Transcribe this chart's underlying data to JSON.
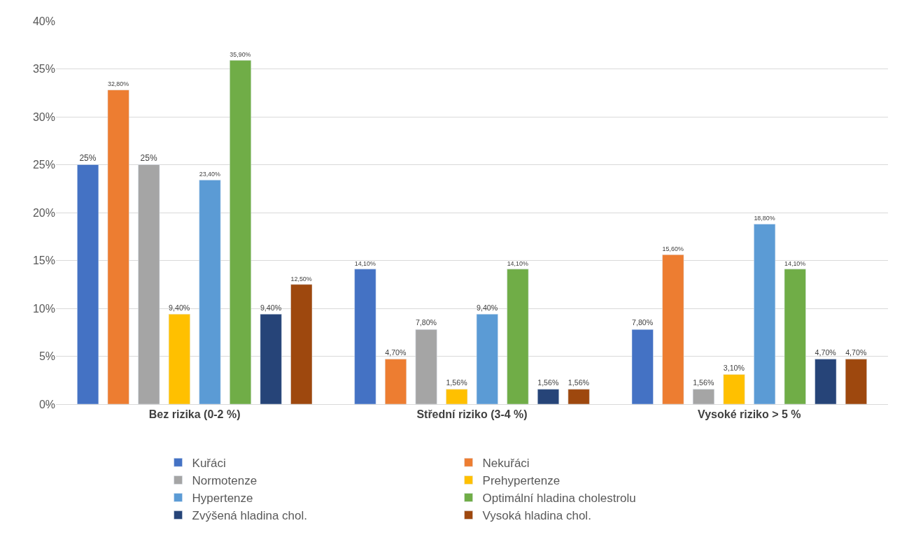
{
  "chart_data": {
    "type": "bar",
    "categories": [
      "Bez rizika (0-2 %)",
      "Střední riziko (3-4 %)",
      "Vysoké riziko > 5 %"
    ],
    "series": [
      {
        "name": "Kuřáci",
        "color": "#4472c4",
        "values": [
          25,
          14.1,
          7.8
        ],
        "value_labels": [
          "25%",
          "14,10%",
          "7,80%"
        ]
      },
      {
        "name": "Nekuřáci",
        "color": "#ed7d31",
        "values": [
          32.8,
          4.7,
          15.6
        ],
        "value_labels": [
          "32,80%",
          "4,70%",
          "15,60%"
        ]
      },
      {
        "name": "Normotenze",
        "color": "#a5a5a5",
        "values": [
          25,
          7.8,
          1.56
        ],
        "value_labels": [
          "25%",
          "7,80%",
          "1,56%"
        ]
      },
      {
        "name": "Prehypertenze",
        "color": "#ffc000",
        "values": [
          9.4,
          1.56,
          3.1
        ],
        "value_labels": [
          "9,40%",
          "1,56%",
          "3,10%"
        ]
      },
      {
        "name": "Hypertenze",
        "color": "#5b9bd5",
        "values": [
          23.4,
          9.4,
          18.8
        ],
        "value_labels": [
          "23,40%",
          "9,40%",
          "18,80%"
        ]
      },
      {
        "name": "Optimální hladina cholestrolu",
        "color": "#70ad47",
        "values": [
          35.9,
          14.1,
          14.1
        ],
        "value_labels": [
          "35,90%",
          "14,10%",
          "14,10%"
        ]
      },
      {
        "name": "Zvýšená hladina chol.",
        "color": "#264478",
        "values": [
          9.4,
          1.56,
          4.7
        ],
        "value_labels": [
          "9,40%",
          "1,56%",
          "4,70%"
        ]
      },
      {
        "name": "Vysoká hladina chol.",
        "color": "#9e480e",
        "values": [
          12.5,
          1.56,
          4.7
        ],
        "value_labels": [
          "12,50%",
          "1,56%",
          "4,70%"
        ]
      }
    ],
    "ylim": [
      0,
      40
    ],
    "yticks": [
      {
        "value": 0,
        "label": "0%"
      },
      {
        "value": 5,
        "label": "5%"
      },
      {
        "value": 10,
        "label": "10%"
      },
      {
        "value": 15,
        "label": "15%"
      },
      {
        "value": 20,
        "label": "20%"
      },
      {
        "value": 25,
        "label": "25%"
      },
      {
        "value": 30,
        "label": "30%"
      },
      {
        "value": 35,
        "label": "35%"
      },
      {
        "value": 40,
        "label": "40%"
      }
    ],
    "grid": "y",
    "legend": "bottom"
  }
}
